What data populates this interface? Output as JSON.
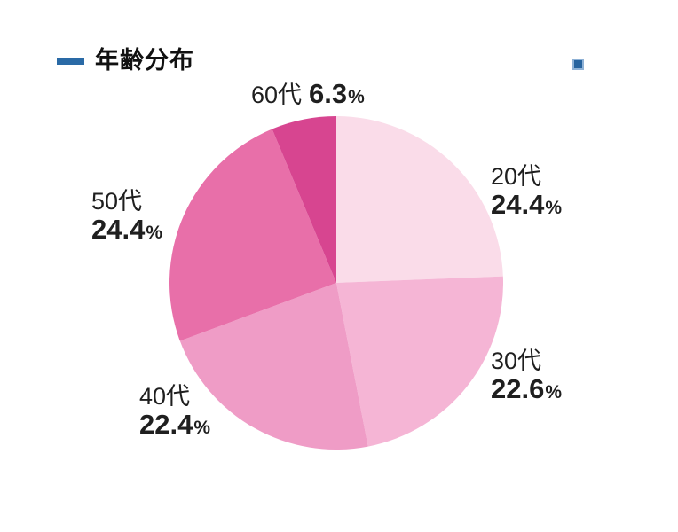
{
  "header": {
    "title": "年齢分布",
    "accent_color": "#2a6aa6"
  },
  "decor": {
    "corner_square_color": "#26639e"
  },
  "chart_data": {
    "type": "pie",
    "title": "年齢分布",
    "categories": [
      "20代",
      "30代",
      "40代",
      "50代",
      "60代"
    ],
    "values": [
      24.4,
      22.6,
      22.4,
      24.4,
      6.3
    ],
    "display_values": [
      "24.4",
      "22.6",
      "22.4",
      "24.4",
      "6.3"
    ],
    "unit": "%",
    "colors": [
      "#fadce9",
      "#f5b5d5",
      "#ef9cc6",
      "#e86fa9",
      "#d74590"
    ],
    "start_angle": "top",
    "direction": "clockwise",
    "legend": "none",
    "label_style": "outside"
  }
}
